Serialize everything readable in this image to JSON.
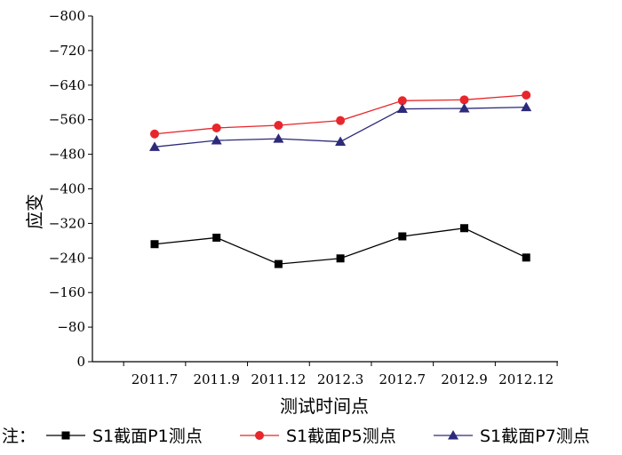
{
  "chart_data": {
    "type": "line",
    "categories": [
      "2011.7",
      "2011.9",
      "2011.12",
      "2012.3",
      "2012.7",
      "2012.9",
      "2012.12"
    ],
    "series": [
      {
        "name": "S1截面P1测点",
        "marker": "square",
        "color": "#000000",
        "values": [
          -272,
          -287,
          -226,
          -239,
          -290,
          -309,
          -241
        ]
      },
      {
        "name": "S1截面P5测点",
        "marker": "circle",
        "color": "#e8262b",
        "values": [
          -527,
          -541,
          -547,
          -558,
          -604,
          -606,
          -617
        ]
      },
      {
        "name": "S1截面P7测点",
        "marker": "triangle",
        "color": "#2e2a7a",
        "values": [
          -497,
          -512,
          -516,
          -509,
          -585,
          -586,
          -589
        ]
      }
    ],
    "xlabel": "测试时间点",
    "ylabel": "应变",
    "ylim": [
      0,
      -800
    ],
    "yticks": [
      -800,
      -720,
      -640,
      -560,
      -480,
      -400,
      -320,
      -240,
      -160,
      -80,
      0
    ],
    "grid": false,
    "legend_prefix": "注：",
    "legend_position": "bottom"
  }
}
